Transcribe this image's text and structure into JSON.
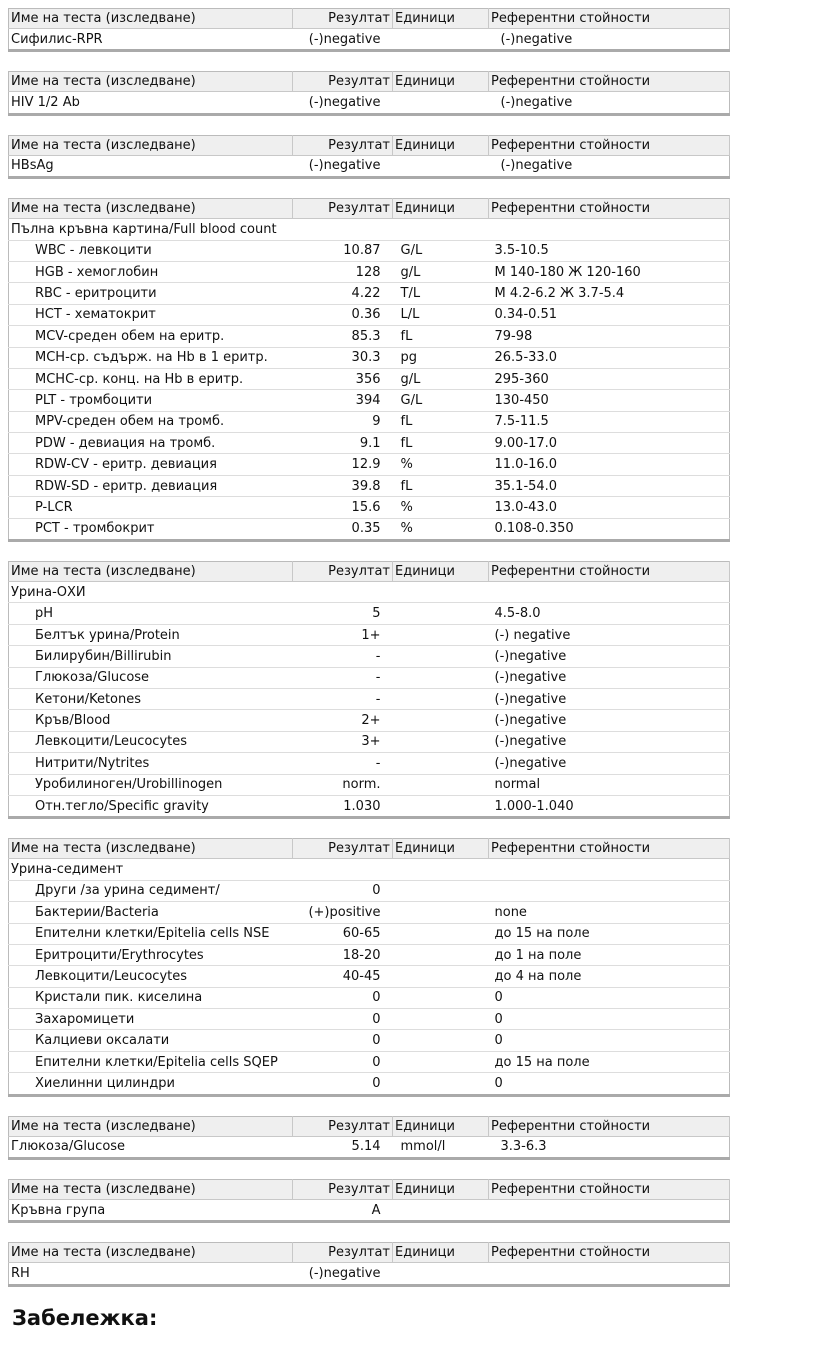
{
  "headers": {
    "name": "Име на теста (изследване)",
    "result": "Резултат",
    "units": "Единици",
    "ref": "Референтни стойности"
  },
  "tables": [
    {
      "rows": [
        {
          "name": "Сифилис-RPR",
          "result": "(-)negative",
          "unit": "",
          "ref": "(-)negative",
          "simple": true
        }
      ]
    },
    {
      "rows": [
        {
          "name": "HIV 1/2 Ab",
          "result": "(-)negative",
          "unit": "",
          "ref": "(-)negative",
          "simple": true
        }
      ]
    },
    {
      "rows": [
        {
          "name": "HBsAg",
          "result": "(-)negative",
          "unit": "",
          "ref": "(-)negative",
          "simple": true
        }
      ]
    },
    {
      "title": "Пълна кръвна картина/Full blood count",
      "rows": [
        {
          "name": "WBC - левкоцити",
          "result": "10.87",
          "unit": "G/L",
          "ref": "3.5-10.5"
        },
        {
          "name": "HGB - хемоглобин",
          "result": "128",
          "unit": "g/L",
          "ref": "М 140-180 Ж 120-160"
        },
        {
          "name": "RBC - еритроцити",
          "result": "4.22",
          "unit": "T/L",
          "ref": "М 4.2-6.2 Ж 3.7-5.4"
        },
        {
          "name": "HCT - хематокрит",
          "result": "0.36",
          "unit": "L/L",
          "ref": "0.34-0.51"
        },
        {
          "name": "MCV-среден обем на еритр.",
          "result": "85.3",
          "unit": "fL",
          "ref": "79-98"
        },
        {
          "name": "MCH-ср. съдърж. на Hb в 1 еритр.",
          "result": "30.3",
          "unit": "pg",
          "ref": "26.5-33.0"
        },
        {
          "name": "MCHC-ср. конц. на Hb в еритр.",
          "result": "356",
          "unit": "g/L",
          "ref": "295-360"
        },
        {
          "name": "PLT - тромбоцити",
          "result": "394",
          "unit": "G/L",
          "ref": "130-450"
        },
        {
          "name": "MPV-среден обем на тромб.",
          "result": "9",
          "unit": "fL",
          "ref": "7.5-11.5"
        },
        {
          "name": "PDW - девиация на тромб.",
          "result": "9.1",
          "unit": "fL",
          "ref": "9.00-17.0"
        },
        {
          "name": "RDW-CV - еритр. девиация",
          "result": "12.9",
          "unit": "%",
          "ref": "11.0-16.0"
        },
        {
          "name": "RDW-SD - еритр. девиация",
          "result": "39.8",
          "unit": "fL",
          "ref": "35.1-54.0"
        },
        {
          "name": "P-LCR",
          "result": "15.6",
          "unit": "%",
          "ref": "13.0-43.0"
        },
        {
          "name": "PCT - тромбокрит",
          "result": "0.35",
          "unit": "%",
          "ref": "0.108-0.350"
        }
      ]
    },
    {
      "title": "Урина-ОХИ",
      "rows": [
        {
          "name": "pH",
          "result": "5",
          "unit": "",
          "ref": "4.5-8.0"
        },
        {
          "name": "Белтък урина/Protein",
          "result": "1+",
          "unit": "",
          "ref": "(-) negative"
        },
        {
          "name": "Билирубин/Billirubin",
          "result": "-",
          "unit": "",
          "ref": "(-)negative"
        },
        {
          "name": "Глюкоза/Glucose",
          "result": "-",
          "unit": "",
          "ref": "(-)negative"
        },
        {
          "name": "Кетони/Ketones",
          "result": "-",
          "unit": "",
          "ref": "(-)negative"
        },
        {
          "name": "Кръв/Blood",
          "result": "2+",
          "unit": "",
          "ref": "(-)negative"
        },
        {
          "name": "Левкоцити/Leucocytes",
          "result": "3+",
          "unit": "",
          "ref": "(-)negative"
        },
        {
          "name": "Нитрити/Nytrites",
          "result": "-",
          "unit": "",
          "ref": "(-)negative"
        },
        {
          "name": "Уробилиноген/Urobillinogen",
          "result": "norm.",
          "unit": "",
          "ref": "normal"
        },
        {
          "name": "Отн.тегло/Specific gravity",
          "result": "1.030",
          "unit": "",
          "ref": "1.000-1.040"
        }
      ]
    },
    {
      "title": "Урина-седимент",
      "rows": [
        {
          "name": "Други /за урина седимент/",
          "result": "0",
          "unit": "",
          "ref": ""
        },
        {
          "name": "Бактерии/Bacteria",
          "result": "(+)positive",
          "unit": "",
          "ref": "none"
        },
        {
          "name": "Епителни клетки/Epitelia cells NSE",
          "result": "60-65",
          "unit": "",
          "ref": "до 15 на поле"
        },
        {
          "name": "Еритроцити/Erythrocytes",
          "result": "18-20",
          "unit": "",
          "ref": "до 1 на поле"
        },
        {
          "name": "Левкоцити/Leucocytes",
          "result": "40-45",
          "unit": "",
          "ref": "до 4 на поле"
        },
        {
          "name": "Кристали пик. киселина",
          "result": "0",
          "unit": "",
          "ref": "0"
        },
        {
          "name": "Захаромицети",
          "result": "0",
          "unit": "",
          "ref": "0"
        },
        {
          "name": "Калциеви оксалати",
          "result": "0",
          "unit": "",
          "ref": "0"
        },
        {
          "name": "Епителни клетки/Epitelia cells SQEP",
          "result": "0",
          "unit": "",
          "ref": "до 15 на поле"
        },
        {
          "name": "Хиелинни цилиндри",
          "result": "0",
          "unit": "",
          "ref": "0"
        }
      ]
    },
    {
      "rows": [
        {
          "name": "Глюкоза/Glucose",
          "result": "5.14",
          "unit": "mmol/l",
          "ref": "3.3-6.3",
          "simple": true
        }
      ]
    },
    {
      "rows": [
        {
          "name": "Кръвна група",
          "result": "A",
          "unit": "",
          "ref": "",
          "simple": true
        }
      ]
    },
    {
      "rows": [
        {
          "name": "RH",
          "result": "(-)negative",
          "unit": "",
          "ref": "",
          "simple": true
        }
      ]
    }
  ],
  "note_label": "Забележка:"
}
